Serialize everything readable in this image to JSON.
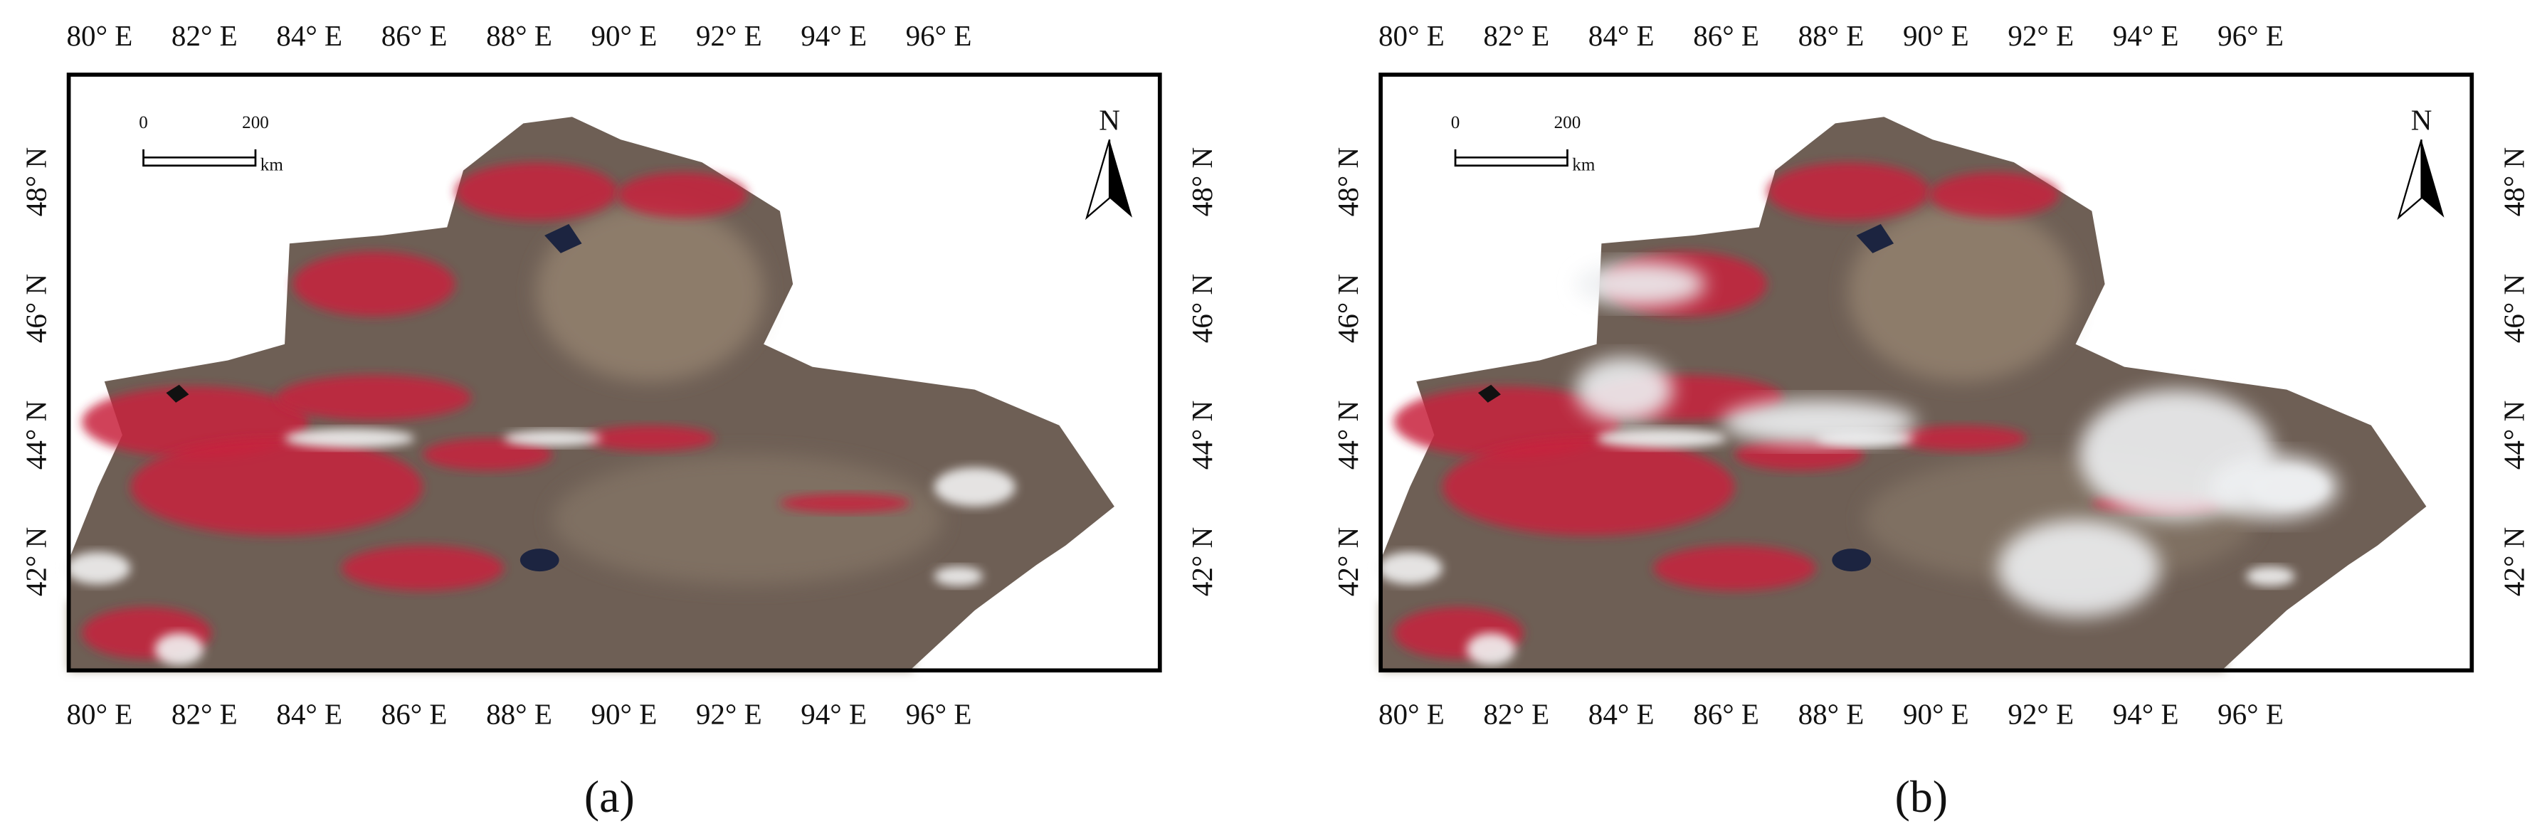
{
  "panels": [
    {
      "caption": "(a)",
      "lon_labels": [
        "80° E",
        "82° E",
        "84° E",
        "86° E",
        "88° E",
        "90° E",
        "92° E",
        "94° E",
        "96° E"
      ],
      "lat_labels": [
        "48° N",
        "46° N",
        "44° N",
        "42° N"
      ],
      "scale_bar": {
        "start": "0",
        "end": "200",
        "unit": "km"
      },
      "north": "N"
    },
    {
      "caption": "(b)",
      "lon_labels": [
        "80° E",
        "82° E",
        "84° E",
        "86° E",
        "88° E",
        "90° E",
        "92° E",
        "94° E",
        "96° E"
      ],
      "lat_labels": [
        "48° N",
        "46° N",
        "44° N",
        "42° N"
      ],
      "scale_bar": {
        "start": "0",
        "end": "200",
        "unit": "km"
      },
      "north": "N"
    }
  ]
}
